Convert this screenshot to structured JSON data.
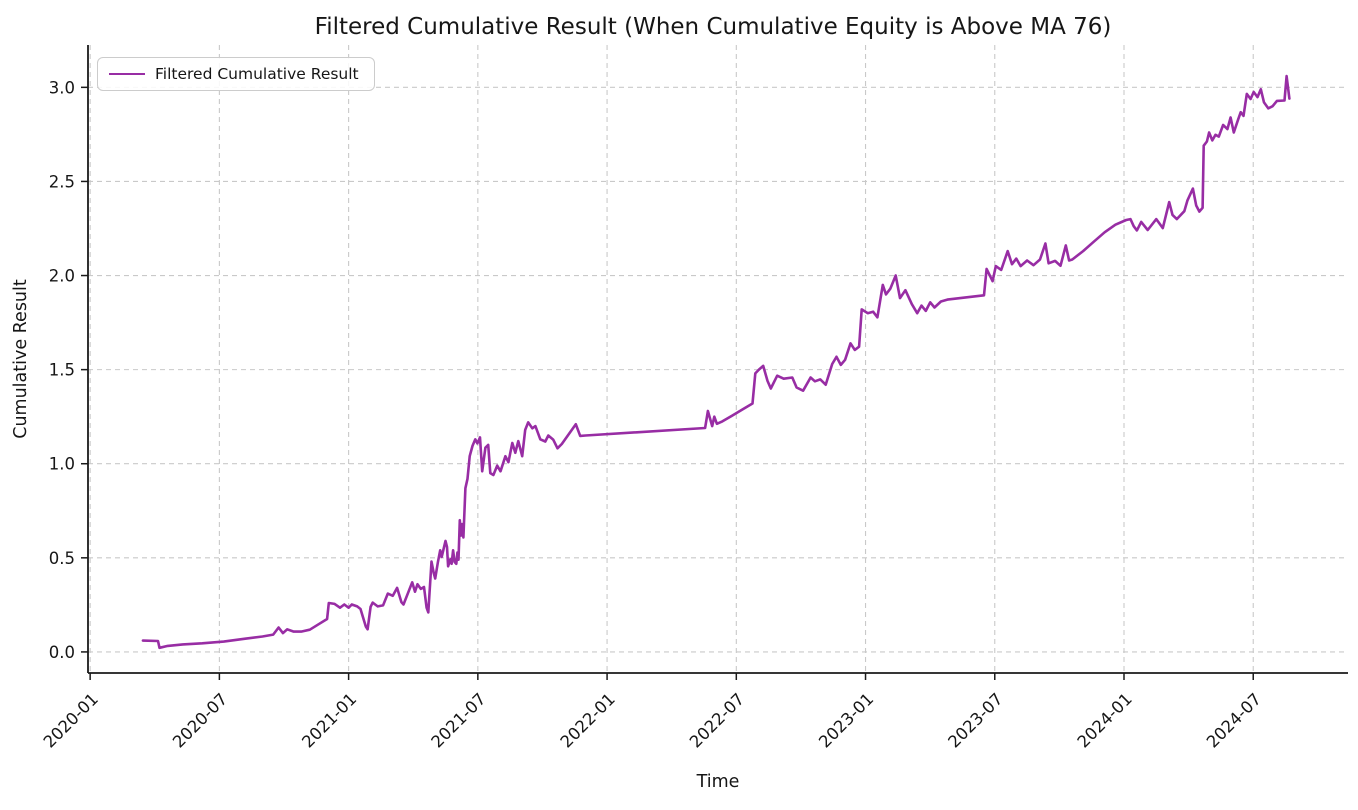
{
  "chart_data": {
    "type": "line",
    "title": "Filtered Cumulative Result (When Cumulative Equity is Above MA 76)",
    "xlabel": "Time",
    "ylabel": "Cumulative Result",
    "grid": true,
    "legend_position": "upper left",
    "x_tick_labels": [
      "2020-01",
      "2020-07",
      "2021-01",
      "2021-07",
      "2022-01",
      "2022-07",
      "2023-01",
      "2023-07",
      "2024-01",
      "2024-07"
    ],
    "x_tick_months": [
      0,
      6,
      12,
      18,
      24,
      30,
      36,
      42,
      48,
      54
    ],
    "y_ticks": [
      0.0,
      0.5,
      1.0,
      1.5,
      2.0,
      2.5,
      3.0
    ],
    "xlim_months": [
      -0.1,
      58.4
    ],
    "ylim": [
      -0.112,
      3.225
    ],
    "colors": {
      "line": "#982da4",
      "grid": "#c9c9c9",
      "spine": "#1a1a1a",
      "text": "#161616"
    },
    "series": [
      {
        "name": "Filtered Cumulative Result",
        "color": "#982da4",
        "x_months": [
          2.45,
          3.15,
          3.22,
          3.6,
          4.3,
          5.2,
          6.2,
          7.2,
          8.0,
          8.5,
          8.75,
          8.95,
          9.15,
          9.45,
          9.8,
          10.2,
          10.65,
          11.0,
          11.08,
          11.35,
          11.6,
          11.8,
          12.0,
          12.15,
          12.4,
          12.55,
          12.8,
          12.88,
          13.02,
          13.12,
          13.35,
          13.6,
          13.82,
          14.05,
          14.25,
          14.45,
          14.55,
          14.95,
          15.08,
          15.2,
          15.35,
          15.5,
          15.62,
          15.7,
          15.85,
          15.95,
          16.02,
          16.15,
          16.25,
          16.32,
          16.5,
          16.57,
          16.62,
          16.72,
          16.78,
          16.85,
          16.92,
          17.0,
          17.05,
          17.1,
          17.16,
          17.22,
          17.27,
          17.33,
          17.42,
          17.52,
          17.62,
          17.75,
          17.88,
          17.98,
          18.1,
          18.2,
          18.35,
          18.48,
          18.58,
          18.72,
          18.9,
          19.05,
          19.28,
          19.42,
          19.6,
          19.74,
          19.88,
          20.06,
          20.2,
          20.34,
          20.53,
          20.67,
          20.9,
          21.13,
          21.27,
          21.5,
          21.7,
          21.9,
          22.55,
          22.75,
          23.0,
          28.55,
          28.68,
          28.88,
          28.98,
          29.1,
          29.35,
          29.8,
          30.3,
          30.75,
          30.88,
          31.05,
          31.25,
          31.45,
          31.6,
          31.9,
          32.2,
          32.6,
          32.8,
          33.1,
          33.45,
          33.65,
          33.9,
          34.15,
          34.45,
          34.65,
          34.85,
          35.05,
          35.3,
          35.5,
          35.7,
          35.82,
          36.1,
          36.35,
          36.55,
          36.8,
          36.95,
          37.15,
          37.4,
          37.6,
          37.85,
          38.15,
          38.4,
          38.6,
          38.8,
          39.0,
          39.2,
          39.5,
          39.8,
          41.5,
          41.62,
          41.9,
          42.05,
          42.3,
          42.6,
          42.8,
          43.0,
          43.2,
          43.5,
          43.8,
          44.1,
          44.35,
          44.5,
          44.8,
          45.05,
          45.3,
          45.45,
          45.6,
          46.1,
          46.6,
          47.1,
          47.6,
          48.1,
          48.3,
          48.45,
          48.6,
          48.8,
          49.1,
          49.5,
          49.8,
          50.1,
          50.25,
          50.45,
          50.8,
          50.95,
          51.2,
          51.35,
          51.5,
          51.65,
          51.7,
          51.85,
          51.95,
          52.1,
          52.25,
          52.4,
          52.6,
          52.8,
          52.95,
          53.1,
          53.3,
          53.42,
          53.55,
          53.7,
          53.88,
          54.02,
          54.2,
          54.35,
          54.5,
          54.7,
          54.9,
          55.1,
          55.45,
          55.55,
          55.68
        ],
        "values": [
          0.06,
          0.058,
          0.022,
          0.032,
          0.04,
          0.046,
          0.055,
          0.07,
          0.082,
          0.092,
          0.13,
          0.1,
          0.12,
          0.108,
          0.108,
          0.118,
          0.15,
          0.175,
          0.26,
          0.255,
          0.235,
          0.252,
          0.235,
          0.252,
          0.242,
          0.228,
          0.135,
          0.12,
          0.24,
          0.262,
          0.242,
          0.248,
          0.31,
          0.298,
          0.34,
          0.265,
          0.252,
          0.37,
          0.32,
          0.36,
          0.335,
          0.345,
          0.235,
          0.21,
          0.48,
          0.42,
          0.39,
          0.48,
          0.54,
          0.505,
          0.59,
          0.558,
          0.455,
          0.492,
          0.468,
          0.54,
          0.478,
          0.468,
          0.528,
          0.49,
          0.7,
          0.618,
          0.68,
          0.608,
          0.87,
          0.92,
          1.04,
          1.095,
          1.13,
          1.108,
          1.14,
          0.96,
          1.085,
          1.1,
          0.95,
          0.94,
          0.99,
          0.96,
          1.04,
          1.008,
          1.11,
          1.058,
          1.12,
          1.04,
          1.18,
          1.22,
          1.188,
          1.2,
          1.13,
          1.118,
          1.15,
          1.128,
          1.082,
          1.105,
          1.21,
          1.148,
          1.15,
          1.19,
          1.28,
          1.2,
          1.25,
          1.212,
          1.225,
          1.255,
          1.29,
          1.32,
          1.48,
          1.5,
          1.52,
          1.44,
          1.4,
          1.468,
          1.452,
          1.458,
          1.405,
          1.388,
          1.458,
          1.438,
          1.448,
          1.42,
          1.53,
          1.568,
          1.525,
          1.552,
          1.64,
          1.605,
          1.622,
          1.82,
          1.8,
          1.808,
          1.778,
          1.95,
          1.9,
          1.93,
          2.0,
          1.88,
          1.922,
          1.848,
          1.8,
          1.84,
          1.812,
          1.858,
          1.83,
          1.862,
          1.872,
          1.895,
          2.035,
          1.97,
          2.05,
          2.03,
          2.13,
          2.06,
          2.09,
          2.05,
          2.08,
          2.055,
          2.085,
          2.17,
          2.065,
          2.078,
          2.052,
          2.16,
          2.08,
          2.085,
          2.13,
          2.18,
          2.23,
          2.27,
          2.295,
          2.3,
          2.262,
          2.24,
          2.285,
          2.242,
          2.3,
          2.252,
          2.39,
          2.322,
          2.3,
          2.342,
          2.4,
          2.462,
          2.372,
          2.34,
          2.36,
          2.69,
          2.712,
          2.76,
          2.718,
          2.748,
          2.738,
          2.8,
          2.778,
          2.84,
          2.76,
          2.83,
          2.868,
          2.848,
          2.965,
          2.938,
          2.975,
          2.948,
          2.99,
          2.92,
          2.888,
          2.9,
          2.928,
          2.93,
          3.06,
          2.94
        ]
      }
    ]
  }
}
